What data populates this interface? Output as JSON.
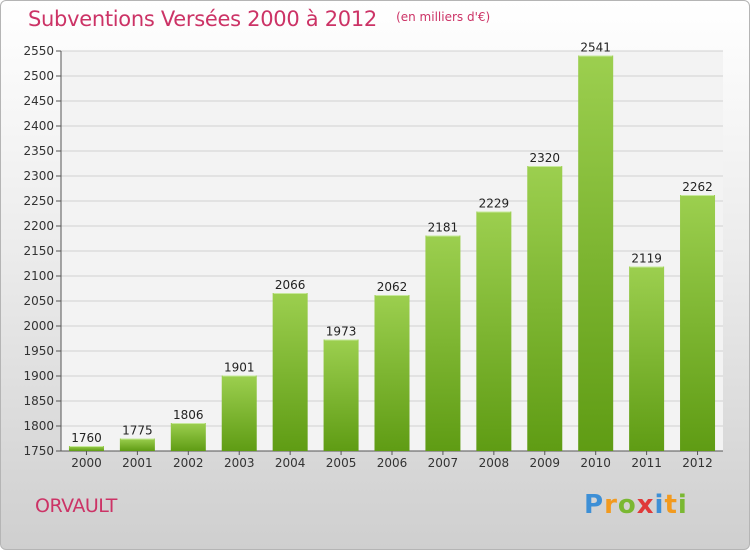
{
  "header": {
    "title": "Subventions Versées 2000 à 2012",
    "subtitle": "(en milliers d'€)"
  },
  "footer": {
    "city": "ORVAULT",
    "logo_letters": [
      {
        "char": "P",
        "color": "#3d8fd6"
      },
      {
        "char": "r",
        "color": "#f29a1e"
      },
      {
        "char": "o",
        "color": "#7ab832"
      },
      {
        "char": "x",
        "color": "#e03a3a"
      },
      {
        "char": "i",
        "color": "#3d8fd6"
      },
      {
        "char": "t",
        "color": "#f29a1e"
      },
      {
        "char": "i",
        "color": "#7ab832"
      }
    ]
  },
  "colors": {
    "title": "#cc3366",
    "bar_top": "#9ccf4f",
    "bar_bottom": "#5f9c14",
    "grid": "#d0d0d0"
  },
  "chart_data": {
    "type": "bar",
    "title": "Subventions Versées 2000 à 2012",
    "subtitle": "(en milliers d'€)",
    "categories": [
      "2000",
      "2001",
      "2002",
      "2003",
      "2004",
      "2005",
      "2006",
      "2007",
      "2008",
      "2009",
      "2010",
      "2011",
      "2012"
    ],
    "values": [
      1760,
      1775,
      1806,
      1901,
      2066,
      1973,
      2062,
      2181,
      2229,
      2320,
      2541,
      2119,
      2262
    ],
    "ylim": [
      1750,
      2550
    ],
    "yticks": [
      1750,
      1800,
      1850,
      1900,
      1950,
      2000,
      2050,
      2100,
      2150,
      2200,
      2250,
      2300,
      2350,
      2400,
      2450,
      2500,
      2550
    ],
    "grid": true,
    "xlabel": "",
    "ylabel": ""
  }
}
